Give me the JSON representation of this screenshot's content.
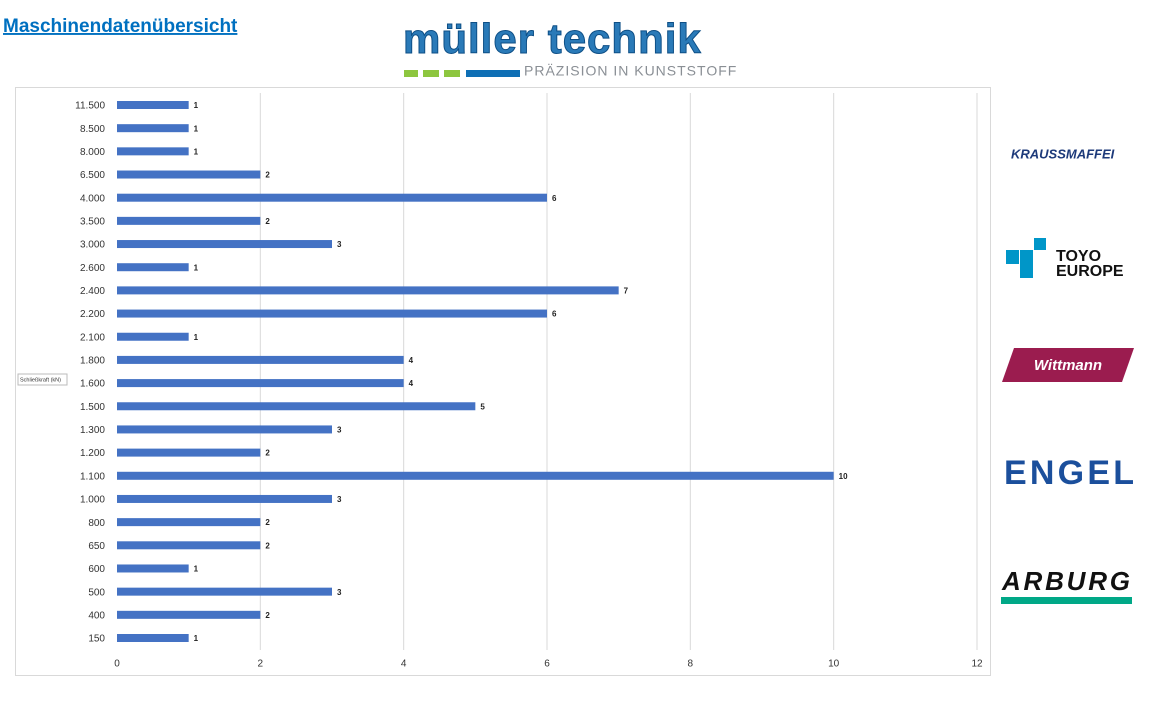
{
  "header": {
    "title": "Maschinendatenübersicht",
    "logo": "müller technik",
    "slogan": "PRÄZISION IN KUNSTSTOFF"
  },
  "brands": [
    "KRAUSSMAFFEI",
    "TOYO",
    "EUROPE",
    "Wittmann",
    "ENGEL",
    "ARBURG"
  ],
  "chart_data": {
    "type": "hbar",
    "y_label": "Schließkraft (kN)",
    "categories": [
      "11.500",
      "8.500",
      "8.000",
      "6.500",
      "4.000",
      "3.500",
      "3.000",
      "2.600",
      "2.400",
      "2.200",
      "2.100",
      "1.800",
      "1.600",
      "1.500",
      "1.300",
      "1.200",
      "1.100",
      "1.000",
      "800",
      "650",
      "600",
      "500",
      "400",
      "150"
    ],
    "values": [
      1,
      1,
      1,
      2,
      6,
      2,
      3,
      1,
      7,
      6,
      1,
      4,
      4,
      5,
      3,
      2,
      10,
      3,
      2,
      2,
      1,
      3,
      2,
      1
    ],
    "color": "#4472c4",
    "xlim": [
      0,
      12
    ],
    "xticks": [
      0,
      2,
      4,
      6,
      8,
      10,
      12
    ],
    "grid": true
  }
}
